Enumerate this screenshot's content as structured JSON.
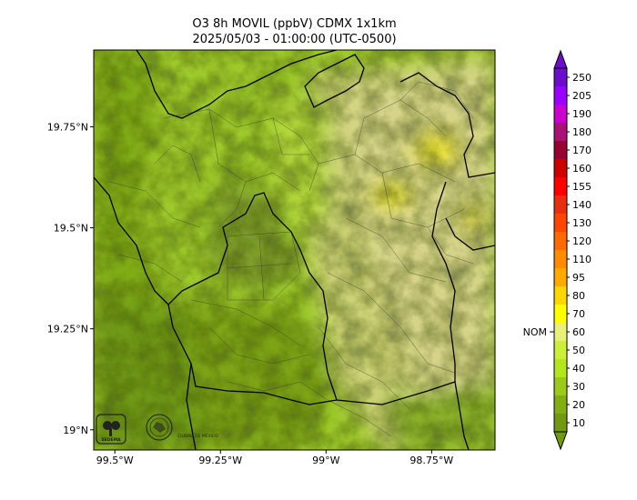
{
  "title": {
    "line1": "O3 8h MOVIL (ppbV) CDMX 1x1km",
    "line2": "2025/05/03 - 01:00:00 (UTC-0500)"
  },
  "map": {
    "lon_range": [
      -99.55,
      -98.6
    ],
    "lat_range": [
      18.95,
      19.94
    ],
    "x_ticks": [
      {
        "lon": -99.5,
        "label": "99.5°W"
      },
      {
        "lon": -99.25,
        "label": "99.25°W"
      },
      {
        "lon": -99.0,
        "label": "99°W"
      },
      {
        "lon": -98.75,
        "label": "98.75°W"
      }
    ],
    "y_ticks": [
      {
        "lat": 19.75,
        "label": "19.75°N"
      },
      {
        "lat": 19.5,
        "label": "19.5°N"
      },
      {
        "lat": 19.25,
        "label": "19.25°N"
      },
      {
        "lat": 19.0,
        "label": "19°N"
      }
    ]
  },
  "colorbar": {
    "levels": [
      {
        "value": "10",
        "color": "#6f9a12"
      },
      {
        "value": "20",
        "color": "#82ae14"
      },
      {
        "value": "30",
        "color": "#99cc1a"
      },
      {
        "value": "40",
        "color": "#b4e61c"
      },
      {
        "value": "50",
        "color": "#ccf03a"
      },
      {
        "value": "60",
        "color": "#e8f07a"
      },
      {
        "value": "70",
        "color": "#ffff00"
      },
      {
        "value": "80",
        "color": "#ffd700"
      },
      {
        "value": "95",
        "color": "#ffaa00"
      },
      {
        "value": "110",
        "color": "#ff8c00"
      },
      {
        "value": "120",
        "color": "#ff6a00"
      },
      {
        "value": "130",
        "color": "#ff4500"
      },
      {
        "value": "140",
        "color": "#e83010"
      },
      {
        "value": "155",
        "color": "#ff0000"
      },
      {
        "value": "160",
        "color": "#cc0000"
      },
      {
        "value": "170",
        "color": "#990033"
      },
      {
        "value": "180",
        "color": "#aa1177"
      },
      {
        "value": "190",
        "color": "#cc00cc"
      },
      {
        "value": "205",
        "color": "#9900ff"
      },
      {
        "value": "250",
        "color": "#6a0dcc"
      }
    ],
    "nom_label": "NOM",
    "nom_value": 70
  },
  "logos": {
    "sedema": "SEDEMA",
    "cdmx": "CIUDAD DE MÉXICO"
  }
}
